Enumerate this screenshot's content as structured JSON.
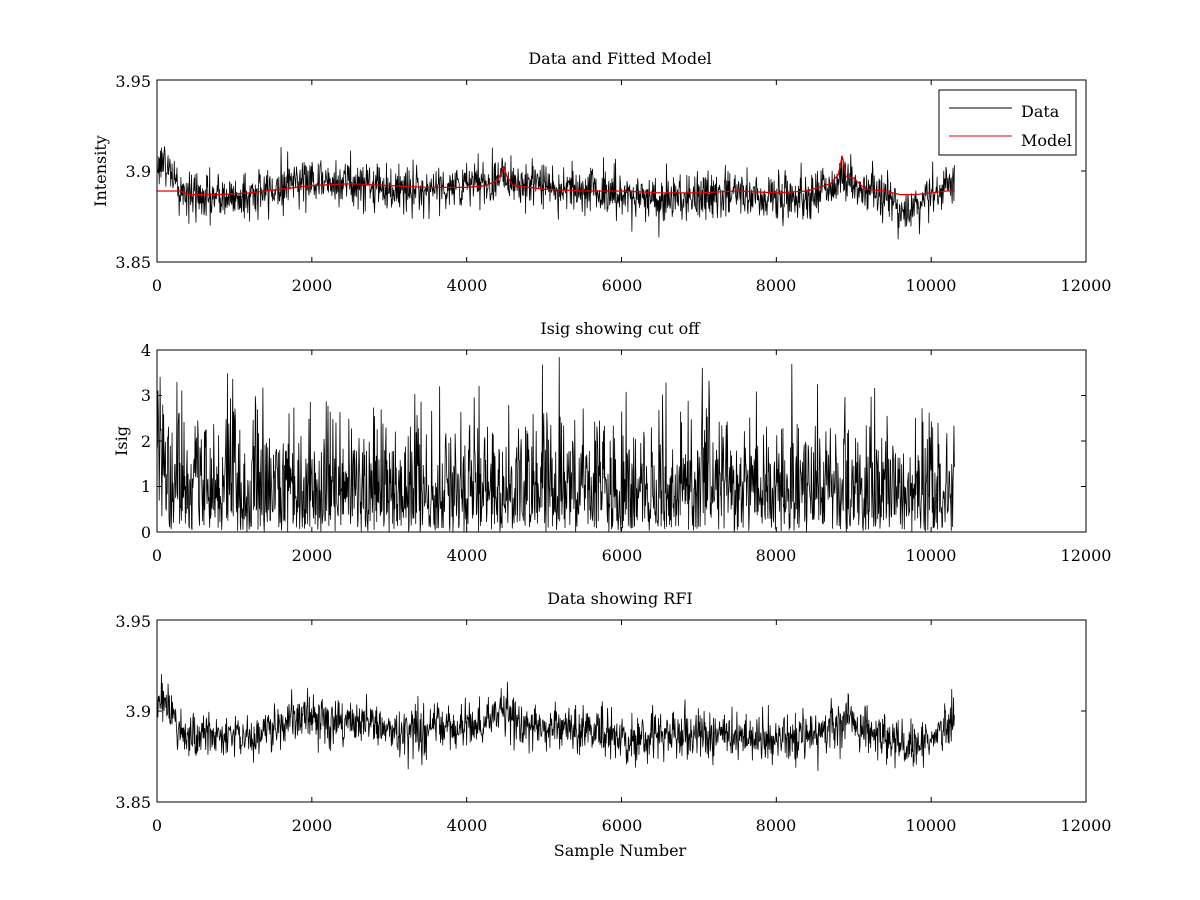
{
  "chart_data": [
    {
      "type": "line",
      "title": "Data and Fitted Model",
      "xlabel": "",
      "ylabel": "Intensity",
      "xlim": [
        0,
        12000
      ],
      "ylim": [
        3.85,
        3.95
      ],
      "xticks": [
        "0",
        "2000",
        "4000",
        "6000",
        "8000",
        "10000",
        "12000"
      ],
      "yticks": [
        "3.85",
        "3.9",
        "3.95"
      ],
      "legend": {
        "placement": "top-right",
        "entries": [
          "Data",
          "Model"
        ]
      },
      "grid": false,
      "series": [
        {
          "name": "Data",
          "color": "#000000",
          "style": "noisy",
          "x": [
            0,
            100,
            200,
            300,
            500,
            800,
            1000,
            1200,
            1500,
            1800,
            2000,
            2400,
            2800,
            3200,
            3600,
            4000,
            4300,
            4450,
            4600,
            5000,
            5500,
            6000,
            6500,
            7000,
            7500,
            8000,
            8400,
            8800,
            8900,
            9100,
            9400,
            9600,
            9800,
            10000,
            10300
          ],
          "y": [
            3.906,
            3.904,
            3.898,
            3.888,
            3.886,
            3.885,
            3.886,
            3.886,
            3.89,
            3.896,
            3.895,
            3.894,
            3.892,
            3.889,
            3.891,
            3.892,
            3.893,
            3.9,
            3.895,
            3.891,
            3.891,
            3.886,
            3.885,
            3.886,
            3.887,
            3.886,
            3.886,
            3.894,
            3.896,
            3.891,
            3.886,
            3.88,
            3.879,
            3.886,
            3.896
          ],
          "noise": 0.0065
        },
        {
          "name": "Model",
          "color": "#e00000",
          "style": "smooth",
          "x": [
            0,
            300,
            400,
            800,
            1200,
            1600,
            2000,
            2500,
            3000,
            3500,
            4000,
            4250,
            4400,
            4480,
            4520,
            4600,
            5000,
            5500,
            6000,
            6500,
            7000,
            7500,
            8000,
            8400,
            8700,
            8800,
            8850,
            8900,
            9000,
            9050,
            9150,
            9400,
            9600,
            9800,
            10000,
            10200,
            10290
          ],
          "y": [
            3.889,
            3.889,
            3.887,
            3.887,
            3.888,
            3.89,
            3.892,
            3.893,
            3.892,
            3.891,
            3.891,
            3.892,
            3.895,
            3.902,
            3.897,
            3.892,
            3.89,
            3.889,
            3.889,
            3.888,
            3.888,
            3.889,
            3.888,
            3.889,
            3.893,
            3.898,
            3.908,
            3.897,
            3.896,
            3.894,
            3.89,
            3.889,
            3.887,
            3.887,
            3.888,
            3.889,
            3.889
          ]
        }
      ]
    },
    {
      "type": "line",
      "title": "Isig showing cut off",
      "xlabel": "",
      "ylabel": "Isig",
      "xlim": [
        0,
        12000
      ],
      "ylim": [
        0,
        4
      ],
      "xticks": [
        "0",
        "2000",
        "4000",
        "6000",
        "8000",
        "10000",
        "12000"
      ],
      "yticks": [
        "0",
        "1",
        "2",
        "3",
        "4"
      ],
      "grid": false,
      "series": [
        {
          "name": "",
          "color": "#000000",
          "style": "noisy",
          "x": [
            0,
            50,
            100,
            150,
            200,
            300,
            1000,
            2000,
            3000,
            4000,
            5000,
            6000,
            7000,
            8000,
            9000,
            10000,
            10300
          ],
          "y": [
            1.8,
            2.2,
            1.9,
            1.4,
            1.0,
            0.9,
            0.85,
            0.85,
            0.85,
            0.85,
            0.85,
            0.85,
            0.85,
            0.85,
            0.85,
            0.85,
            0.9
          ],
          "noise": 0.9
        }
      ]
    },
    {
      "type": "line",
      "title": "Data showing RFI",
      "xlabel": "Sample Number",
      "ylabel": "",
      "xlim": [
        0,
        12000
      ],
      "ylim": [
        3.85,
        3.95
      ],
      "xticks": [
        "0",
        "2000",
        "4000",
        "6000",
        "8000",
        "10000",
        "12000"
      ],
      "yticks": [
        "3.85",
        "3.9",
        "3.95"
      ],
      "grid": false,
      "series": [
        {
          "name": "",
          "color": "#000000",
          "style": "noisy",
          "x": [
            0,
            100,
            200,
            300,
            500,
            800,
            1000,
            1200,
            1500,
            1800,
            2000,
            2400,
            2800,
            3200,
            3600,
            4000,
            4300,
            4450,
            4600,
            5000,
            5500,
            6000,
            6500,
            7000,
            7500,
            8000,
            8400,
            8800,
            8900,
            9100,
            9400,
            9600,
            9800,
            10000,
            10300
          ],
          "y": [
            3.906,
            3.904,
            3.898,
            3.888,
            3.886,
            3.885,
            3.886,
            3.886,
            3.89,
            3.896,
            3.895,
            3.894,
            3.892,
            3.889,
            3.891,
            3.892,
            3.893,
            3.9,
            3.895,
            3.891,
            3.891,
            3.886,
            3.885,
            3.886,
            3.887,
            3.886,
            3.886,
            3.894,
            3.896,
            3.891,
            3.886,
            3.88,
            3.879,
            3.886,
            3.896
          ],
          "noise": 0.0065
        }
      ]
    }
  ]
}
